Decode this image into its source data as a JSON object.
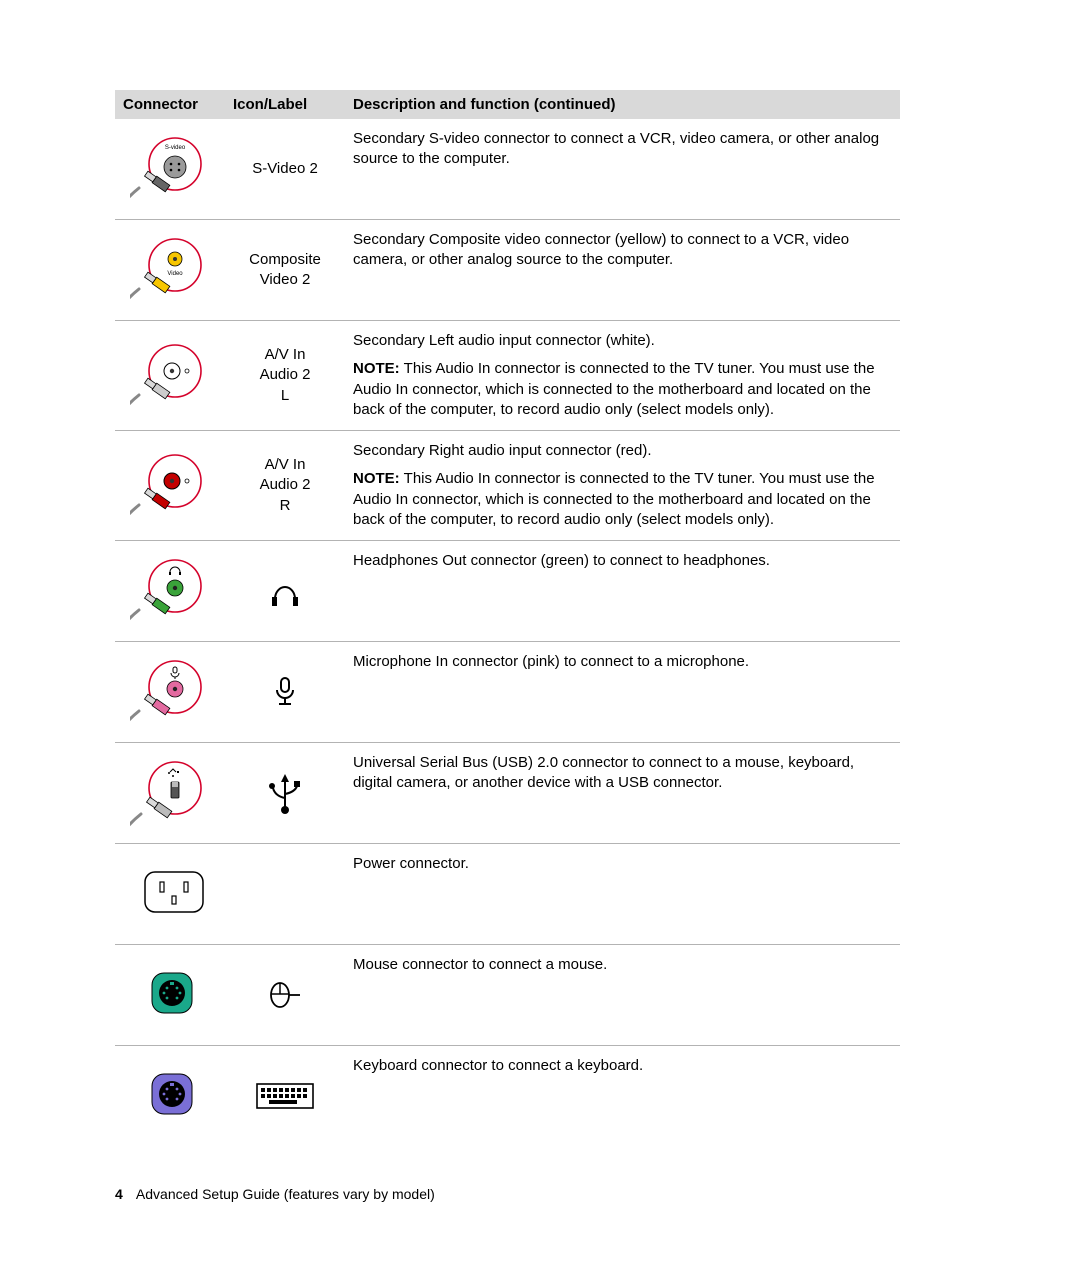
{
  "header": {
    "col1": "Connector",
    "col2": "Icon/Label",
    "col3": "Description and function (continued)"
  },
  "rows": [
    {
      "label": "S-Video 2",
      "desc": "Secondary S-video connector to connect a VCR, video camera, or other analog source to the computer.",
      "note": "",
      "icon": "svideo",
      "label_icon": ""
    },
    {
      "label": "Composite Video 2",
      "desc": "Secondary Composite video connector (yellow) to connect to a VCR, video camera, or other analog source to the computer.",
      "note": "",
      "icon": "composite",
      "label_icon": ""
    },
    {
      "label": "A/V In Audio 2 L",
      "desc": "Secondary Left audio input connector (white).",
      "note": "This Audio In connector is connected to the TV tuner. You must use the Audio In connector, which is connected to the motherboard and located on the back of the computer, to record audio only (select models only).",
      "icon": "audio_white",
      "label_icon": ""
    },
    {
      "label": "A/V In Audio 2 R",
      "desc": "Secondary Right audio input connector (red).",
      "note": "This Audio In connector is connected to the TV tuner. You must use the Audio In connector, which is connected to the motherboard and located on the back of the computer, to record audio only (select models only).",
      "icon": "audio_red",
      "label_icon": ""
    },
    {
      "label": "",
      "desc": "Headphones Out connector (green) to connect to headphones.",
      "note": "",
      "icon": "headphone_jack",
      "label_icon": "headphones"
    },
    {
      "label": "",
      "desc": "Microphone In connector (pink) to connect to a microphone.",
      "note": "",
      "icon": "mic_jack",
      "label_icon": "microphone"
    },
    {
      "label": "",
      "desc": "Universal Serial Bus (USB) 2.0 connector to connect to a mouse, keyboard, digital camera, or another device with a USB connector.",
      "note": "",
      "icon": "usb",
      "label_icon": "usb_symbol"
    },
    {
      "label": "",
      "desc": "Power connector.",
      "note": "",
      "icon": "power",
      "label_icon": ""
    },
    {
      "label": "",
      "desc": "Mouse connector to connect a mouse.",
      "note": "",
      "icon": "ps2_mouse",
      "label_icon": "mouse_symbol"
    },
    {
      "label": "",
      "desc": "Keyboard connector to connect a keyboard.",
      "note": "",
      "icon": "ps2_keyboard",
      "label_icon": "keyboard_symbol"
    }
  ],
  "note_label": "NOTE:",
  "footer": {
    "page": "4",
    "text": "Advanced Setup Guide (features vary by model)"
  },
  "colors": {
    "circle": "#d4022b",
    "svideo_body": "#9a9a9a",
    "yellow": "#f7c600",
    "white": "#ffffff",
    "red": "#c30000",
    "green": "#3aa33a",
    "pink": "#e36aa0",
    "ps2_green": "#1aa88a",
    "ps2_purple": "#7a6fd6",
    "plug_grey": "#b8b8b8"
  }
}
